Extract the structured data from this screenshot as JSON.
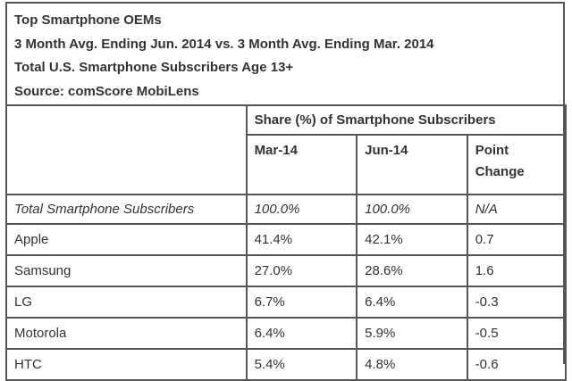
{
  "titles": [
    "Top Smartphone OEMs",
    "3 Month Avg. Ending Jun. 2014 vs. 3 Month Avg. Ending Mar. 2014",
    "Total U.S. Smartphone Subscribers Age 13+",
    "Source: comScore MobiLens"
  ],
  "chart_data": {
    "type": "table",
    "title": "Top Smartphone OEMs",
    "group_header": "Share (%) of Smartphone Subscribers",
    "columns": [
      "Mar-14",
      "Jun-14",
      "Point Change"
    ],
    "rows": [
      {
        "label": "Total Smartphone Subscribers",
        "values": [
          "100.0%",
          "100.0%",
          "N/A"
        ]
      },
      {
        "label": "Apple",
        "values": [
          "41.4%",
          "42.1%",
          "0.7"
        ]
      },
      {
        "label": "Samsung",
        "values": [
          "27.0%",
          "28.6%",
          "1.6"
        ]
      },
      {
        "label": "LG",
        "values": [
          "6.7%",
          "6.4%",
          "-0.3"
        ]
      },
      {
        "label": "Motorola",
        "values": [
          "6.4%",
          "5.9%",
          "-0.5"
        ]
      },
      {
        "label": "HTC",
        "values": [
          "5.4%",
          "4.8%",
          "-0.6"
        ]
      }
    ]
  }
}
